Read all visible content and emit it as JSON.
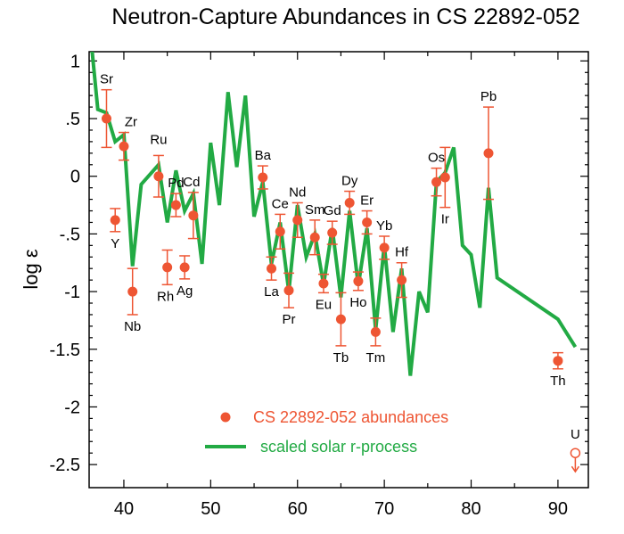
{
  "chart_data": {
    "type": "scatter",
    "title": "Neutron-Capture Abundances in CS 22892-052",
    "xlabel": "",
    "ylabel": "log ε",
    "xlim": [
      36,
      93.5
    ],
    "ylim": [
      -2.7,
      1.08
    ],
    "x_ticks": [
      40,
      50,
      60,
      70,
      80,
      90
    ],
    "x_tick_labels": [
      "40",
      "50",
      "60",
      "70",
      "80",
      "90"
    ],
    "y_ticks": [
      1,
      0.5,
      0,
      -0.5,
      -1,
      -1.5,
      -2,
      -2.5
    ],
    "y_tick_labels": [
      "1",
      ".5",
      "0",
      "-.5",
      "-1",
      "-1.5",
      "-2",
      "-2.5"
    ],
    "grid": false,
    "legend_position": "bottom-center",
    "colors": {
      "observed": "#ee5533",
      "solar": "#22aa44"
    },
    "series": [
      {
        "name": "CS 22892-052 abundances",
        "kind": "points_with_error_bars",
        "points": [
          {
            "el": "Sr",
            "x": 38,
            "y": 0.5,
            "err": 0.25
          },
          {
            "el": "Y",
            "x": 39,
            "y": -0.38,
            "err": 0.1
          },
          {
            "el": "Zr",
            "x": 40,
            "y": 0.26,
            "err": 0.12
          },
          {
            "el": "Nb",
            "x": 41,
            "y": -1.0,
            "err": 0.2
          },
          {
            "el": "Ru",
            "x": 44,
            "y": 0.0,
            "err": 0.18
          },
          {
            "el": "Rh",
            "x": 45,
            "y": -0.79,
            "err": 0.15
          },
          {
            "el": "Pd",
            "x": 46,
            "y": -0.25,
            "err": 0.1
          },
          {
            "el": "Ag",
            "x": 47,
            "y": -0.79,
            "err": 0.1
          },
          {
            "el": "Cd",
            "x": 48,
            "y": -0.34,
            "err": 0.2
          },
          {
            "el": "Ba",
            "x": 56,
            "y": -0.01,
            "err": 0.1
          },
          {
            "el": "La",
            "x": 57,
            "y": -0.8,
            "err": 0.1
          },
          {
            "el": "Ce",
            "x": 58,
            "y": -0.48,
            "err": 0.15
          },
          {
            "el": "Pr",
            "x": 59,
            "y": -0.99,
            "err": 0.15
          },
          {
            "el": "Nd",
            "x": 60,
            "y": -0.38,
            "err": 0.15
          },
          {
            "el": "Sm",
            "x": 62,
            "y": -0.53,
            "err": 0.15
          },
          {
            "el": "Eu",
            "x": 63,
            "y": -0.93,
            "err": 0.08
          },
          {
            "el": "Gd",
            "x": 64,
            "y": -0.49,
            "err": 0.1
          },
          {
            "el": "Tb",
            "x": 65,
            "y": -1.24,
            "err": 0.23
          },
          {
            "el": "Dy",
            "x": 66,
            "y": -0.23,
            "err": 0.1
          },
          {
            "el": "Ho",
            "x": 67,
            "y": -0.91,
            "err": 0.08
          },
          {
            "el": "Er",
            "x": 68,
            "y": -0.4,
            "err": 0.1
          },
          {
            "el": "Tm",
            "x": 69,
            "y": -1.35,
            "err": 0.12
          },
          {
            "el": "Yb",
            "x": 70,
            "y": -0.62,
            "err": 0.1
          },
          {
            "el": "Hf",
            "x": 72,
            "y": -0.9,
            "err": 0.15
          },
          {
            "el": "Os",
            "x": 76,
            "y": -0.05,
            "err": 0.12
          },
          {
            "el": "Ir",
            "x": 77,
            "y": -0.01,
            "err": 0.26
          },
          {
            "el": "Pb",
            "x": 82,
            "y": 0.2,
            "err": 0.4
          },
          {
            "el": "Th",
            "x": 90,
            "y": -1.6,
            "err": 0.07
          }
        ],
        "upper_limits": [
          {
            "el": "U",
            "x": 92,
            "y": -2.4
          }
        ]
      },
      {
        "name": "scaled solar r-process",
        "kind": "line",
        "x": [
          36,
          37,
          38,
          39,
          40,
          41,
          42,
          44,
          45,
          46,
          47,
          48,
          49,
          50,
          51,
          52,
          53,
          54,
          55,
          56,
          57,
          58,
          59,
          60,
          61,
          62,
          63,
          64,
          65,
          66,
          67,
          68,
          69,
          70,
          71,
          72,
          73,
          74,
          75,
          76,
          77,
          78,
          79,
          80,
          81,
          82,
          83,
          90,
          92
        ],
        "y": [
          1.35,
          0.58,
          0.55,
          0.3,
          0.36,
          -0.78,
          -0.07,
          0.1,
          -0.4,
          0.05,
          -0.3,
          -0.15,
          -0.76,
          0.29,
          -0.25,
          0.73,
          0.08,
          0.7,
          -0.35,
          -0.05,
          -0.76,
          -0.4,
          -1.0,
          -0.25,
          -0.7,
          -0.5,
          -0.94,
          -0.45,
          -1.05,
          -0.3,
          -0.95,
          -0.45,
          -1.33,
          -0.6,
          -1.35,
          -0.8,
          -1.73,
          -1.0,
          -1.18,
          -0.05,
          0.03,
          0.25,
          -0.6,
          -0.68,
          -1.14,
          -0.1,
          -0.88,
          -1.24,
          -1.48
        ]
      }
    ],
    "legend": [
      {
        "name": "CS 22892-052 abundances",
        "marker": "dot"
      },
      {
        "name": "scaled solar r-process",
        "marker": "line"
      }
    ]
  }
}
